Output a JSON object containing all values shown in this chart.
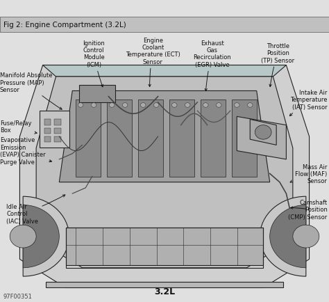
{
  "title": "Fig 2: Engine Compartment (3.2L)",
  "title_fontsize": 7.5,
  "caption": "3.2L",
  "caption_fontsize": 9,
  "footnote": "97F00351",
  "footnote_fontsize": 6,
  "bg_color": "#e0e0e0",
  "title_bg": "#c8c8c8",
  "text_color": "#111111",
  "fig_width": 4.74,
  "fig_height": 4.35,
  "label_fontsize": 6.0
}
